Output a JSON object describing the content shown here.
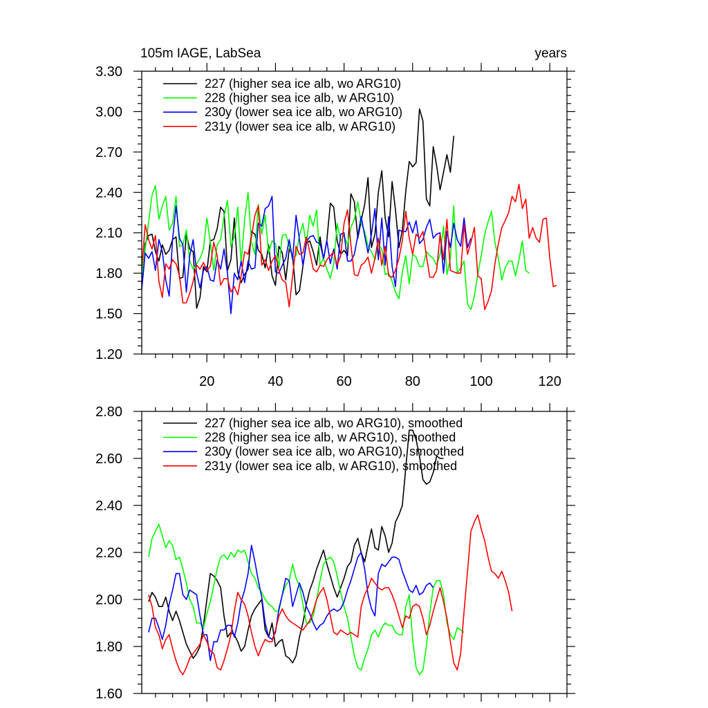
{
  "chart_data": [
    {
      "type": "line",
      "title": "105m IAGE, LabSea",
      "title_right": "years",
      "xlim": [
        1,
        125
      ],
      "ylim": [
        1.2,
        3.3
      ],
      "yticks": [
        "1.20",
        "1.50",
        "1.80",
        "2.10",
        "2.40",
        "2.70",
        "3.00",
        "3.30"
      ],
      "xticks": [
        "20",
        "40",
        "60",
        "80",
        "100",
        "120"
      ],
      "series": [
        {
          "name": "227 (higher sea ice alb, wo ARG10)",
          "color": "#000000",
          "x_start": 1,
          "values": [
            1.72,
            2.02,
            2.08,
            2.09,
            1.96,
            1.89,
            2.01,
            1.94,
            1.97,
            2.05,
            2.07,
            1.76,
            1.77,
            2.09,
            1.98,
            1.96,
            1.54,
            1.62,
            1.85,
            1.81,
            2.04,
            2.05,
            2.13,
            2.29,
            2.26,
            1.82,
            1.9,
            2.21,
            1.81,
            1.73,
            1.79,
            1.83,
            2.11,
            2.09,
            1.97,
            1.94,
            1.84,
            2.01,
            1.78,
            1.71,
            2.0,
            1.95,
            1.75,
            1.98,
            1.93,
            1.64,
            1.67,
            1.85,
            2.02,
            2.04,
            1.96,
            1.86,
            2.07,
            1.9,
            2.05,
            2.32,
            2.29,
            2.04,
            1.94,
            1.97,
            1.93,
            2.39,
            2.33,
            2.06,
            2.19,
            2.31,
            2.51,
            1.99,
            2.09,
            2.4,
            2.56,
            2.21,
            2.07,
            2.48,
            2.27,
            1.99,
            2.12,
            2.41,
            2.63,
            2.59,
            2.62,
            3.02,
            2.93,
            2.35,
            2.3,
            2.74,
            2.6,
            2.42,
            2.55,
            2.68,
            2.55,
            2.82
          ]
        },
        {
          "name": "228 (higher sea ice alb, w ARG10)",
          "color": "#00ff00",
          "x_start": 1,
          "values": [
            1.78,
            1.98,
            2.18,
            2.38,
            2.45,
            2.2,
            2.3,
            2.37,
            2.12,
            2.17,
            2.37,
            2.0,
            2.01,
            2.12,
            1.89,
            1.83,
            1.87,
            1.91,
            1.98,
            2.21,
            2.03,
            1.82,
            2.01,
            2.05,
            2.22,
            2.34,
            2.0,
            2.07,
            2.29,
            1.87,
            2.2,
            2.4,
            2.03,
            1.94,
            2.31,
            2.09,
            2.23,
            1.95,
            2.04,
            2.02,
            1.84,
            2.08,
            2.09,
            2.0,
            1.92,
            1.93,
            2.08,
            2.17,
            2.01,
            2.23,
            2.15,
            2.27,
            1.86,
            1.91,
            1.83,
            1.76,
            1.87,
            2.17,
            2.04,
            2.08,
            2.01,
            2.14,
            2.2,
            2.33,
            2.17,
            2.11,
            2.0,
            1.96,
            1.9,
            2.01,
            1.98,
            1.79,
            1.8,
            1.74,
            1.66,
            1.61,
            1.81,
            1.93,
            1.72,
            1.94,
            1.92,
            1.85,
            1.85,
            1.96,
            1.93,
            1.91,
            1.86,
            1.94,
            2.15,
            1.79,
            1.91,
            2.3,
            1.8,
            1.84,
            1.89,
            1.57,
            1.53,
            1.63,
            1.79,
            1.93,
            2.09,
            2.18,
            2.26,
            2.03,
            1.91,
            1.75,
            1.84,
            1.89,
            1.89,
            1.78,
            1.9,
            2.04,
            1.82,
            1.8
          ]
        },
        {
          "name": "230y (lower sea ice alb, wo ARG10)",
          "color": "#0000ff",
          "x_start": 1,
          "values": [
            1.68,
            1.95,
            1.91,
            1.96,
            1.82,
            2.05,
            1.96,
            1.75,
            1.63,
            2.05,
            2.3,
            2.06,
            2.01,
            1.66,
            1.93,
            2.05,
            1.8,
            1.69,
            1.82,
            1.85,
            1.75,
            1.74,
            1.9,
            1.83,
            1.98,
            1.8,
            1.5,
            1.8,
            1.75,
            1.89,
            1.73,
            1.89,
            1.83,
            1.84,
            2.17,
            2.15,
            2.28,
            2.3,
            2.37,
            1.81,
            1.8,
            1.86,
            1.91,
            2.05,
            1.9,
            2.23,
            2.05,
            1.86,
            2.03,
            2.07,
            2.08,
            2.03,
            2.02,
            1.91,
            2.04,
            1.87,
            1.98,
            1.83,
            2.09,
            2.1,
            1.89,
            1.89,
            1.94,
            2.08,
            2.22,
            2.08,
            1.95,
            2.09,
            2.28,
            1.9,
            2.21,
            1.86,
            2.22,
            1.85,
            1.7,
            2.12,
            2.11,
            2.11,
            2.18,
            2.1,
            2.19,
            2.02,
            2.05,
            2.14,
            2.2,
            2.06,
            2.09,
            2.1,
            1.8,
            2.11,
            1.99,
            2.17,
            2.05,
            2.0,
            2.21,
            1.99,
            2.06
          ]
        },
        {
          "name": "231y (lower sea ice alb, w ARG10)",
          "color": "#ff0000",
          "x_start": 1,
          "values": [
            1.83,
            2.16,
            2.05,
            1.98,
            2.08,
            1.74,
            1.62,
            1.87,
            1.83,
            1.9,
            1.87,
            1.78,
            1.58,
            1.58,
            1.65,
            1.74,
            1.86,
            1.83,
            1.88,
            1.82,
            1.85,
            2.03,
            1.93,
            1.71,
            1.76,
            1.76,
            1.66,
            1.7,
            1.64,
            1.78,
            1.96,
            1.94,
            2.07,
            2.23,
            2.3,
            1.86,
            1.9,
            1.82,
            1.89,
            1.93,
            1.82,
            1.75,
            1.73,
            1.55,
            1.78,
            2.0,
            1.94,
            1.95,
            2.07,
            1.96,
            1.83,
            1.81,
            1.86,
            1.85,
            1.9,
            1.93,
            1.96,
            1.86,
            1.93,
            2.17,
            2.27,
            2.01,
            1.79,
            1.78,
            1.86,
            1.88,
            1.92,
            1.8,
            1.91,
            2.06,
            1.86,
            2.0,
            1.78,
            1.77,
            1.82,
            1.91,
            2.04,
            2.26,
            2.06,
            1.94,
            2.09,
            2.06,
            2.11,
            1.93,
            1.77,
            1.77,
            1.82,
            2.09,
            1.9,
            2.2,
            1.82,
            1.81,
            1.8,
            1.8,
            2.16,
            1.94,
            2.03,
            2.14,
            1.78,
            1.76,
            1.53,
            1.59,
            1.67,
            1.87,
            2.02,
            2.14,
            2.19,
            2.25,
            2.37,
            2.33,
            2.46,
            2.28,
            2.35,
            2.06,
            2.14,
            2.06,
            2.03,
            2.2,
            2.21,
            1.91,
            1.7,
            1.71
          ]
        }
      ]
    },
    {
      "type": "line",
      "xlim": [
        1,
        125
      ],
      "ylim": [
        1.6,
        2.8
      ],
      "yticks": [
        "1.60",
        "1.80",
        "2.00",
        "2.20",
        "2.40",
        "2.60",
        "2.80"
      ],
      "series": [
        {
          "name": "227 (higher sea ice alb, wo ARG10), smoothed",
          "color": "#000000",
          "x_start": 3,
          "values": [
            1.99,
            2.03,
            2.01,
            1.97,
            1.97,
            2.01,
            1.95,
            1.91,
            1.95,
            1.91,
            1.86,
            1.81,
            1.78,
            1.75,
            1.77,
            1.8,
            1.89,
            2.0,
            2.11,
            2.1,
            2.08,
            2.05,
            1.93,
            1.84,
            1.86,
            1.85,
            1.82,
            1.78,
            1.8,
            1.87,
            1.93,
            1.96,
            1.98,
            2.0,
            1.87,
            1.84,
            1.9,
            1.8,
            1.82,
            1.83,
            1.76,
            1.75,
            1.73,
            1.76,
            1.84,
            1.9,
            1.98,
            2.04,
            2.08,
            2.13,
            2.17,
            2.21,
            2.15,
            2.1,
            2.05,
            2.01,
            2.05,
            2.09,
            2.14,
            2.16,
            2.23,
            2.26,
            2.2,
            2.16,
            2.23,
            2.3,
            2.22,
            2.21,
            2.31,
            2.27,
            2.2,
            2.24,
            2.33,
            2.36,
            2.4,
            2.56,
            2.72,
            2.72,
            2.68,
            2.61,
            2.51,
            2.49,
            2.5,
            2.54,
            2.61,
            2.6,
            2.6
          ]
        },
        {
          "name": "228 (higher sea ice alb, w ARG10), smoothed",
          "color": "#00ff00",
          "x_start": 3,
          "values": [
            2.18,
            2.26,
            2.29,
            2.32,
            2.27,
            2.22,
            2.25,
            2.23,
            2.17,
            2.18,
            2.13,
            2.07,
            2.0,
            1.97,
            1.9,
            1.9,
            1.88,
            1.94,
            1.99,
            2.06,
            2.13,
            2.18,
            2.19,
            2.17,
            2.2,
            2.18,
            2.21,
            2.2,
            2.21,
            2.16,
            2.11,
            2.09,
            2.05,
            2.03,
            2.0,
            1.98,
            1.97,
            1.95,
            1.95,
            2.02,
            2.06,
            2.08,
            2.15,
            2.09,
            2.06,
            1.98,
            1.9,
            1.9,
            1.93,
            2.0,
            2.08,
            2.15,
            2.17,
            2.18,
            2.16,
            2.1,
            2.03,
            1.97,
            1.92,
            1.84,
            1.76,
            1.71,
            1.7,
            1.75,
            1.79,
            1.85,
            1.87,
            1.84,
            1.88,
            1.9,
            1.89,
            1.89,
            1.86,
            1.85,
            1.85,
            1.97,
            2.02,
            1.83,
            1.71,
            1.68,
            1.7,
            1.8,
            1.94,
            2.05,
            2.08,
            2.08,
            2.02,
            1.9,
            1.85,
            1.83,
            1.88,
            1.87,
            1.86
          ]
        },
        {
          "name": "230y (lower sea ice alb, wo ARG10), smoothed",
          "color": "#0000ff",
          "x_start": 3,
          "values": [
            1.86,
            1.92,
            1.92,
            1.88,
            1.83,
            1.89,
            1.98,
            2.04,
            2.11,
            2.11,
            2.02,
            2.0,
            2.04,
            2.03,
            2.02,
            1.93,
            1.85,
            1.85,
            1.74,
            1.82,
            1.82,
            1.87,
            1.87,
            1.89,
            1.89,
            1.84,
            1.9,
            1.99,
            2.04,
            2.11,
            2.23,
            2.16,
            2.08,
            2.01,
            1.9,
            1.84,
            1.83,
            1.86,
            1.96,
            2.02,
            2.09,
            2.08,
            1.97,
            2.02,
            2.07,
            2.03,
            1.97,
            1.94,
            1.9,
            1.87,
            1.89,
            1.9,
            1.93,
            1.95,
            1.96,
            1.95,
            1.96,
            1.99,
            2.04,
            2.08,
            2.13,
            2.18,
            2.2,
            2.13,
            2.02,
            1.96,
            1.93,
            2.11,
            2.15,
            2.14,
            2.16,
            2.18,
            2.18,
            2.17,
            2.12,
            2.08,
            2.04,
            2.03,
            2.06,
            2.02,
            2.03,
            2.06,
            2.07,
            2.05
          ]
        },
        {
          "name": "231y (lower sea ice alb, w ARG10), smoothed",
          "color": "#ff0000",
          "x_start": 3,
          "values": [
            2.02,
            1.97,
            1.88,
            1.85,
            1.79,
            1.83,
            1.85,
            1.79,
            1.74,
            1.7,
            1.68,
            1.71,
            1.75,
            1.77,
            1.79,
            1.81,
            1.85,
            1.82,
            1.78,
            1.77,
            1.71,
            1.7,
            1.74,
            1.79,
            1.85,
            1.95,
            2.03,
            2.0,
            1.98,
            1.93,
            1.86,
            1.8,
            1.76,
            1.8,
            1.83,
            1.82,
            1.82,
            1.87,
            1.93,
            1.96,
            1.93,
            1.91,
            1.9,
            1.89,
            1.88,
            1.87,
            1.89,
            1.91,
            1.95,
            2.0,
            2.03,
            2.05,
            2.0,
            1.93,
            1.86,
            1.85,
            1.87,
            1.86,
            1.85,
            1.86,
            1.85,
            1.84,
            1.97,
            2.02,
            2.05,
            2.09,
            2.07,
            2.05,
            2.04,
            2.05,
            2.05,
            2.02,
            1.98,
            1.93,
            1.88,
            1.93,
            1.92,
            1.97,
            1.98,
            1.97,
            1.92,
            1.85,
            1.89,
            1.95,
            2.0,
            2.05,
            1.99,
            1.92,
            1.82,
            1.73,
            1.7,
            1.77,
            1.95,
            2.12,
            2.29,
            2.33,
            2.36,
            2.3,
            2.25,
            2.18,
            2.12,
            2.11,
            2.09,
            2.12,
            2.08,
            2.03,
            1.95
          ]
        }
      ]
    }
  ]
}
